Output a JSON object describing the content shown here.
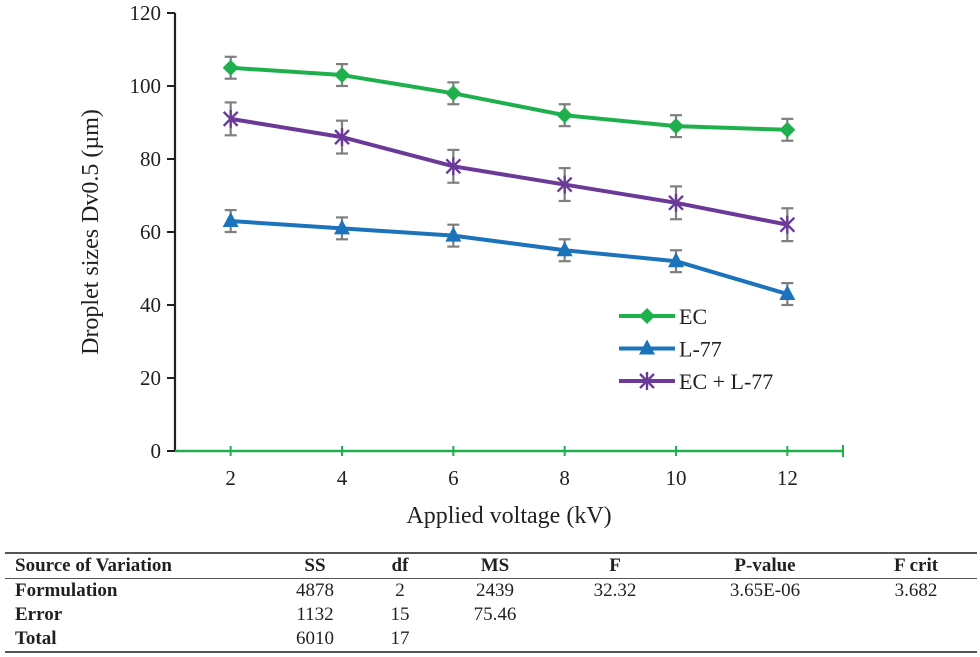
{
  "chart_data": {
    "type": "line",
    "title": "",
    "xlabel": "Applied voltage (kV)",
    "ylabel": "Droplet sizes Dv0.5 (µm)",
    "x": [
      2,
      4,
      6,
      8,
      10,
      12
    ],
    "x_tick_labels": [
      "2",
      "4",
      "6",
      "8",
      "10",
      "12"
    ],
    "xlim": [
      1,
      13
    ],
    "ylim": [
      0,
      120
    ],
    "y_ticks": [
      0,
      20,
      40,
      60,
      80,
      100,
      120
    ],
    "y_tick_labels": [
      "0",
      "20",
      "40",
      "60",
      "80",
      "100",
      "120"
    ],
    "grid": false,
    "legend_position": "lower-right",
    "series": [
      {
        "name": "EC",
        "color": "#1fb04e",
        "marker": "diamond",
        "values": [
          105,
          103,
          98,
          92,
          89,
          88
        ],
        "errors": [
          3,
          3,
          3,
          3,
          3,
          3
        ]
      },
      {
        "name": "L-77",
        "color": "#1b73bb",
        "marker": "triangle",
        "values": [
          63,
          61,
          59,
          55,
          52,
          43
        ],
        "errors": [
          3,
          3,
          3,
          3,
          3,
          3
        ]
      },
      {
        "name": "EC + L-77",
        "color": "#6b3a99",
        "marker": "asterisk",
        "values": [
          91,
          86,
          78,
          73,
          68,
          62
        ],
        "errors": [
          4.5,
          4.5,
          4.5,
          4.5,
          4.5,
          4.5
        ]
      }
    ],
    "error_bar_color": "#7f7f7f",
    "x_axis_color": "#1fb04e",
    "y_axis_color": "#231f20"
  },
  "anova_table": {
    "headers": [
      "Source of Variation",
      "SS",
      "df",
      "MS",
      "F",
      "P-value",
      "F crit"
    ],
    "rows": [
      [
        "Formulation",
        "4878",
        "2",
        "2439",
        "32.32",
        "3.65E-06",
        "3.682"
      ],
      [
        "Error",
        "1132",
        "15",
        "75.46",
        "",
        "",
        ""
      ],
      [
        "Total",
        "6010",
        "17",
        "",
        "",
        "",
        ""
      ]
    ]
  }
}
